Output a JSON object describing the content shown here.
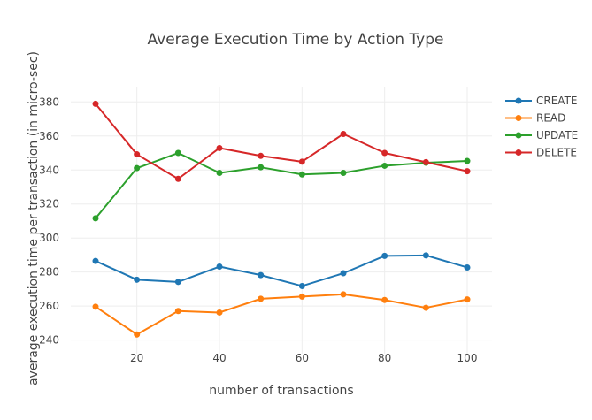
{
  "chart_data": {
    "type": "line",
    "title": "Average Execution Time by Action Type",
    "xlabel": "number of transactions",
    "ylabel": "average execution time per transaction (in micro-sec)",
    "x": [
      10,
      20,
      30,
      40,
      50,
      60,
      70,
      80,
      90,
      100
    ],
    "xlim": [
      4,
      106
    ],
    "ylim": [
      232,
      389
    ],
    "xticks": [
      20,
      40,
      60,
      80,
      100
    ],
    "yticks": [
      240,
      260,
      280,
      300,
      320,
      340,
      360,
      380
    ],
    "grid": true,
    "legend_position": "top-right",
    "series": [
      {
        "name": "CREATE",
        "color": "#1f77b4",
        "values": [
          286.5,
          275.5,
          274.2,
          283.2,
          278.2,
          271.8,
          279.3,
          289.5,
          289.8,
          282.7
        ]
      },
      {
        "name": "READ",
        "color": "#ff7f0e",
        "values": [
          259.6,
          243.3,
          257.1,
          256.2,
          264.3,
          265.6,
          266.9,
          263.6,
          259.0,
          263.9
        ]
      },
      {
        "name": "UPDATE",
        "color": "#2ca02c",
        "values": [
          311.6,
          341.1,
          350.0,
          338.3,
          341.6,
          337.4,
          338.3,
          342.5,
          344.3,
          345.3
        ]
      },
      {
        "name": "DELETE",
        "color": "#d62728",
        "values": [
          378.9,
          349.2,
          334.8,
          352.9,
          348.3,
          344.9,
          361.2,
          350.0,
          344.6,
          339.3
        ]
      }
    ]
  }
}
